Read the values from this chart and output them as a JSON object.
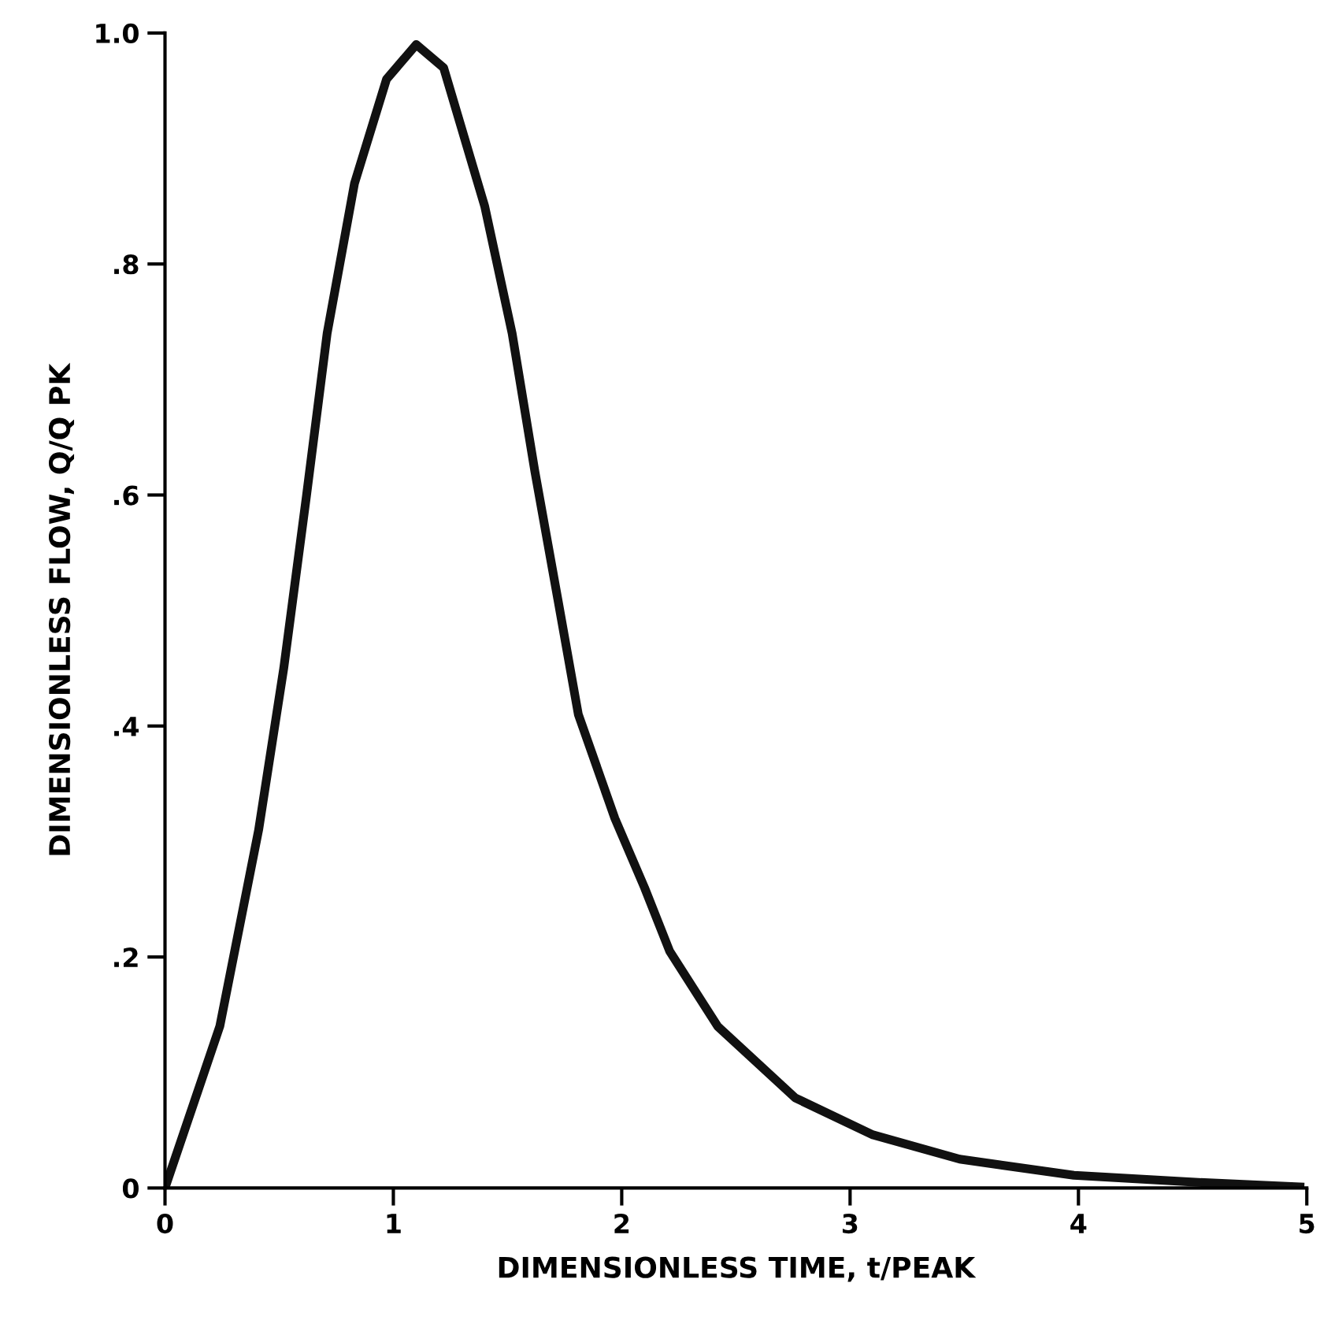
{
  "chart_data": {
    "type": "line",
    "xlabel": "DIMENSIONLESS TIME, t/PEAK",
    "ylabel": "DIMENSIONLESS FLOW, Q/Q PK",
    "xlim": [
      0,
      5
    ],
    "ylim": [
      0,
      1.0
    ],
    "xticks": [
      0,
      1,
      2,
      3,
      4,
      5
    ],
    "yticks": [
      0,
      {
        "value": 0.2,
        "label": ".2"
      },
      {
        "value": 0.4,
        "label": ".4"
      },
      {
        "value": 0.6,
        "label": ".6"
      },
      {
        "value": 0.8,
        "label": ".8"
      },
      {
        "value": 1.0,
        "label": "1.0"
      }
    ],
    "grid": false,
    "legend": false,
    "marker": "none",
    "line_style": "solid",
    "series": [
      {
        "color": "#111111",
        "x": [
          0,
          0.24,
          0.41,
          0.52,
          0.62,
          0.71,
          0.83,
          0.97,
          1.1,
          1.22,
          1.4,
          1.52,
          1.62,
          1.72,
          1.81,
          1.97,
          2.1,
          2.21,
          2.42,
          2.76,
          3.1,
          3.48,
          3.98,
          4.51,
          4.97
        ],
        "values": [
          0,
          0.14,
          0.31,
          0.45,
          0.6,
          0.74,
          0.87,
          0.96,
          0.99,
          0.97,
          0.85,
          0.74,
          0.62,
          0.51,
          0.41,
          0.32,
          0.26,
          0.205,
          0.14,
          0.078,
          0.046,
          0.025,
          0.011,
          0.005,
          0.001
        ]
      }
    ]
  }
}
